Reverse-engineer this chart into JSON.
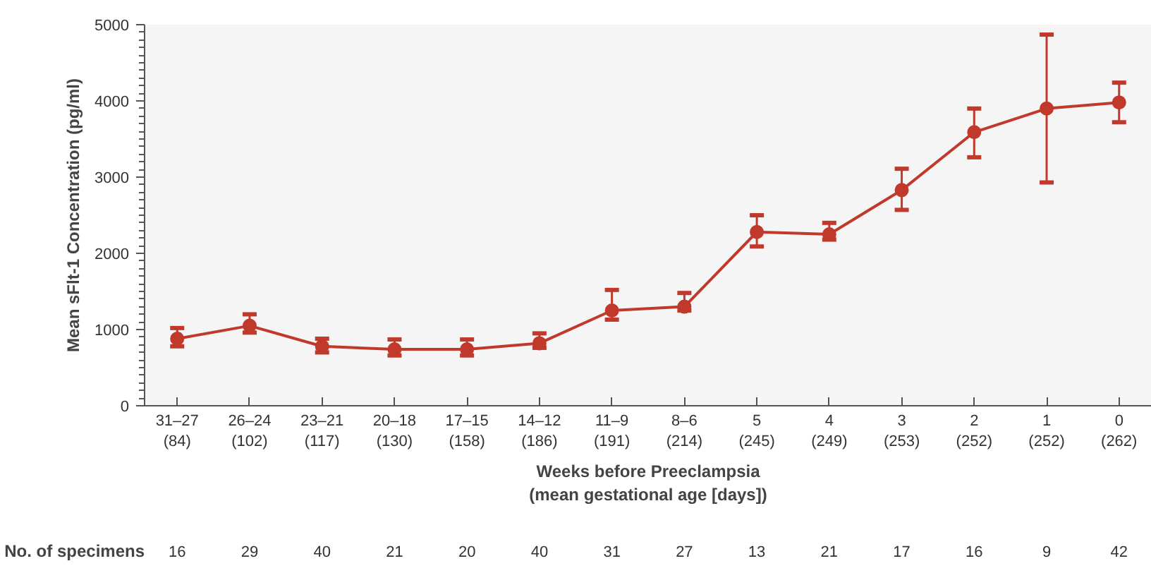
{
  "chart_data": {
    "type": "line",
    "ylabel": "Mean sFlt-1 Concentration (pg/ml)",
    "xlabel": "Weeks before Preeclampsia\n(mean gestational age [days])",
    "categories": [
      "31–27\n(84)",
      "26–24\n(102)",
      "23–21\n(117)",
      "20–18\n(130)",
      "17–15\n(158)",
      "14–12\n(186)",
      "11–9\n(191)",
      "8–6\n(214)",
      "5\n(245)",
      "4\n(249)",
      "3\n(253)",
      "2\n(252)",
      "1\n(252)",
      "0\n(262)"
    ],
    "series": [
      {
        "color": "#c0392b",
        "values": [
          880,
          1050,
          780,
          740,
          740,
          820,
          1250,
          1300,
          2280,
          2250,
          2830,
          3590,
          3900,
          3980
        ],
        "errors": [
          [
            780,
            1020
          ],
          [
            960,
            1200
          ],
          [
            700,
            880
          ],
          [
            660,
            870
          ],
          [
            660,
            870
          ],
          [
            760,
            950
          ],
          [
            1130,
            1520
          ],
          [
            1250,
            1480
          ],
          [
            2090,
            2500
          ],
          [
            2180,
            2400
          ],
          [
            2570,
            3110
          ],
          [
            3260,
            3900
          ],
          [
            2930,
            4870
          ],
          [
            3720,
            4240
          ]
        ]
      }
    ],
    "ylim": [
      0,
      5000
    ],
    "yticks": [
      0,
      1000,
      2000,
      3000,
      4000,
      5000
    ],
    "grid": false,
    "marker": "circle",
    "line_style": "solid",
    "annotations": [
      "No. of specimens",
      "16",
      "29",
      "40",
      "21",
      "20",
      "40",
      "31",
      "27",
      "13",
      "21",
      "17",
      "16",
      "9",
      "42"
    ]
  }
}
